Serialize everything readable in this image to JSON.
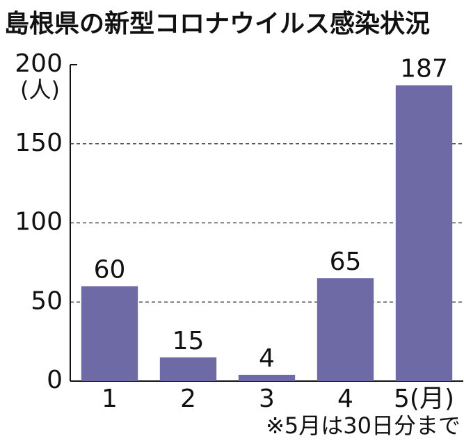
{
  "chart_data": {
    "type": "bar",
    "title": "島根県の新型コロナウイルス感染状況",
    "y_unit": "(人)",
    "categories": [
      "1",
      "2",
      "3",
      "4",
      "5(月)"
    ],
    "values": [
      60,
      15,
      4,
      65,
      187
    ],
    "color": "#6e6aa6",
    "ylim": [
      0,
      200
    ],
    "yticks": [
      0,
      50,
      100,
      150,
      200
    ],
    "grid": true,
    "note": "※5月は30日分まで"
  }
}
